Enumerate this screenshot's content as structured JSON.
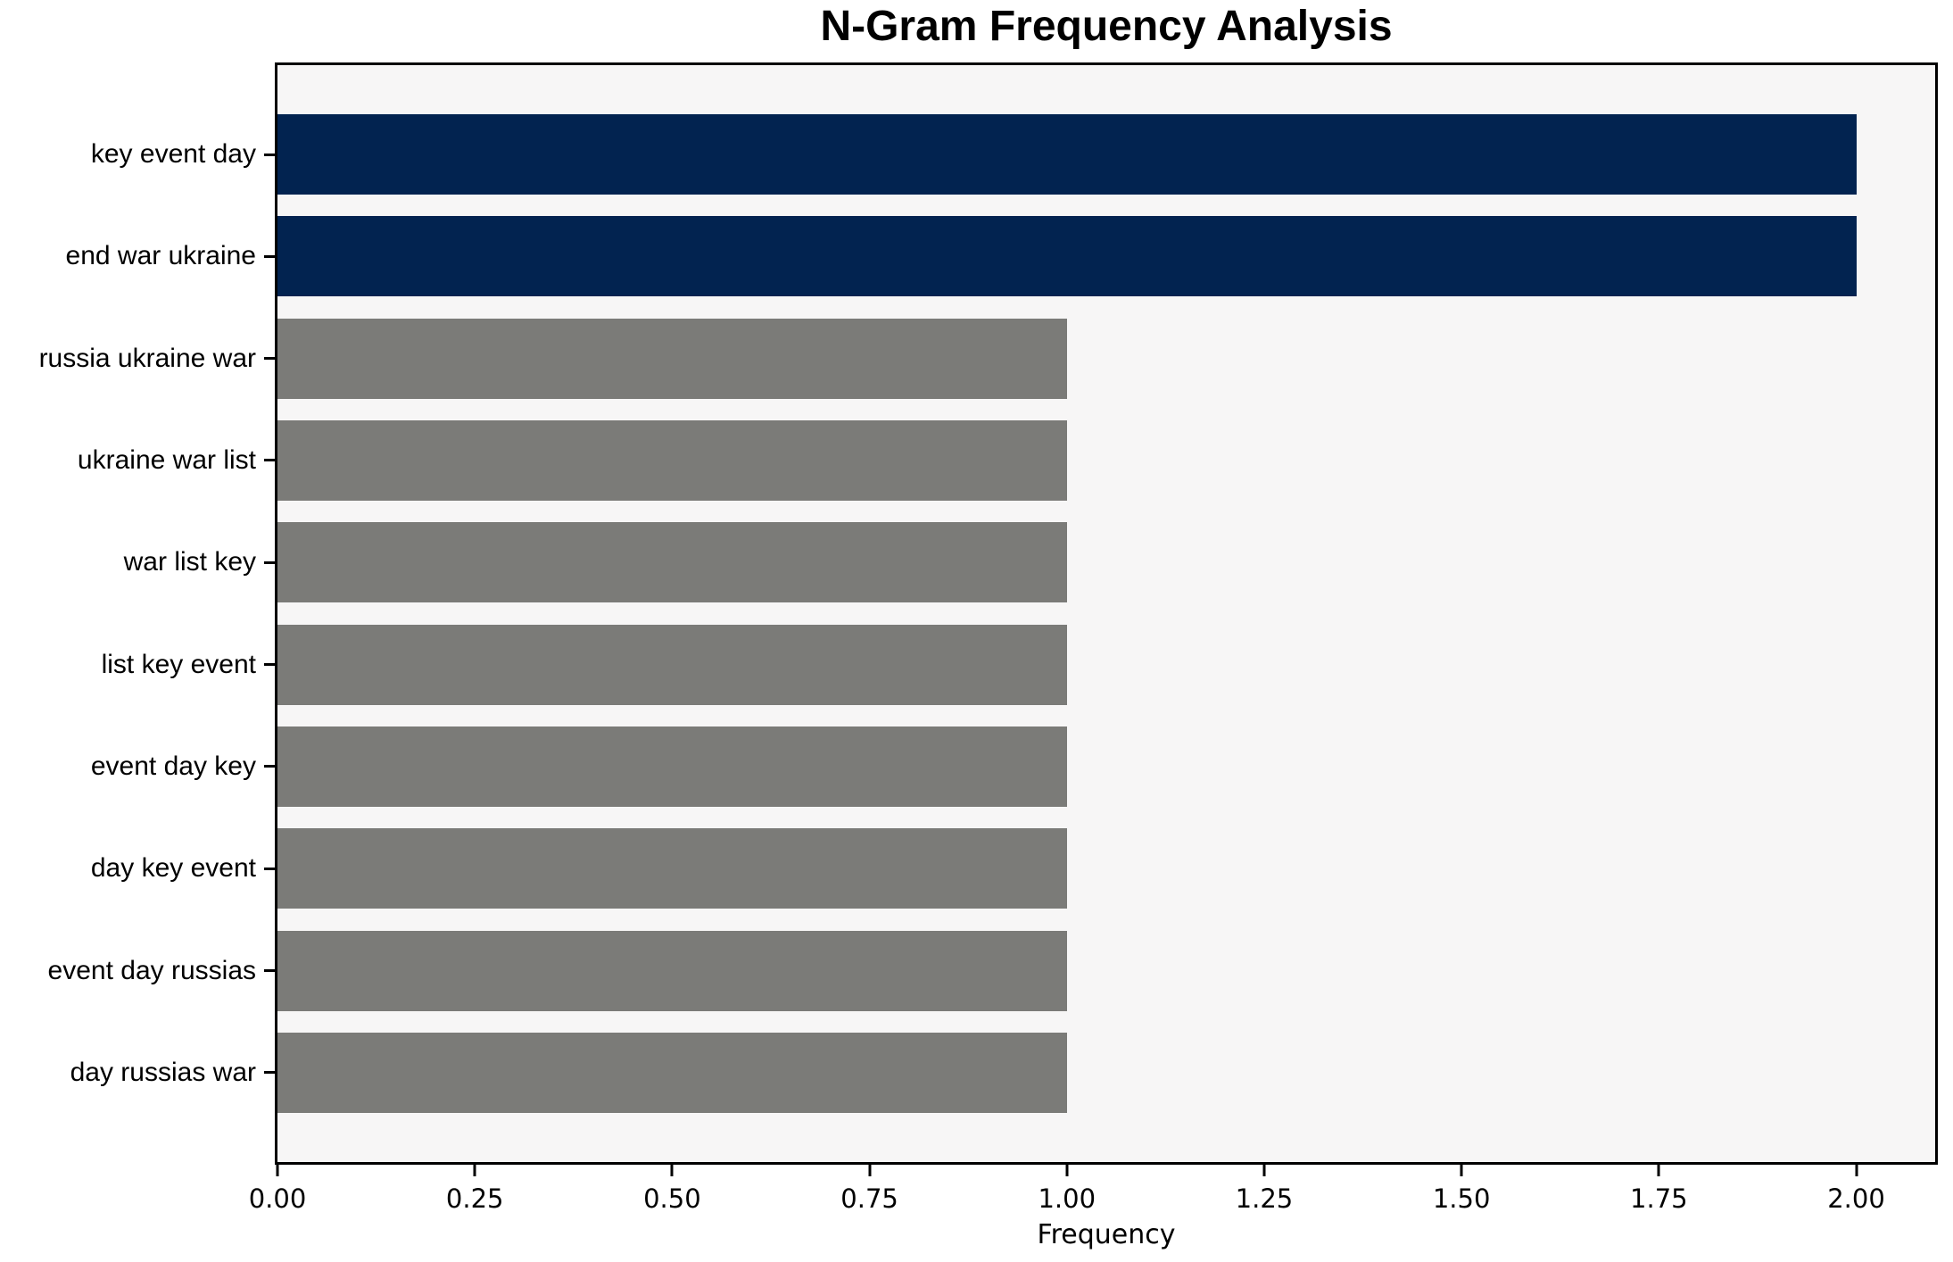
{
  "chart_data": {
    "type": "bar",
    "orientation": "horizontal",
    "title": "N-Gram Frequency Analysis",
    "xlabel": "Frequency",
    "ylabel": "",
    "categories": [
      "key event day",
      "end war ukraine",
      "russia ukraine war",
      "ukraine war list",
      "war list key",
      "list key event",
      "event day key",
      "day key event",
      "event day russias",
      "day russias war"
    ],
    "values": [
      2,
      2,
      1,
      1,
      1,
      1,
      1,
      1,
      1,
      1
    ],
    "bar_colors": [
      "#022350",
      "#022350",
      "#7b7b78",
      "#7b7b78",
      "#7b7b78",
      "#7b7b78",
      "#7b7b78",
      "#7b7b78",
      "#7b7b78",
      "#7b7b78"
    ],
    "x_ticks": [
      "0.00",
      "0.25",
      "0.50",
      "0.75",
      "1.00",
      "1.25",
      "1.50",
      "1.75",
      "2.00"
    ],
    "x_tick_values": [
      0,
      0.25,
      0.5,
      0.75,
      1.0,
      1.25,
      1.5,
      1.75,
      2.0
    ],
    "xlim": [
      0,
      2.1
    ],
    "grid": false,
    "legend": "none",
    "colors": {
      "highlight_bar": "#022350",
      "default_bar": "#7b7b78",
      "plot_background": "#f7f6f6",
      "figure_background": "#ffffff",
      "spine": "#000000",
      "text": "#000000"
    }
  }
}
